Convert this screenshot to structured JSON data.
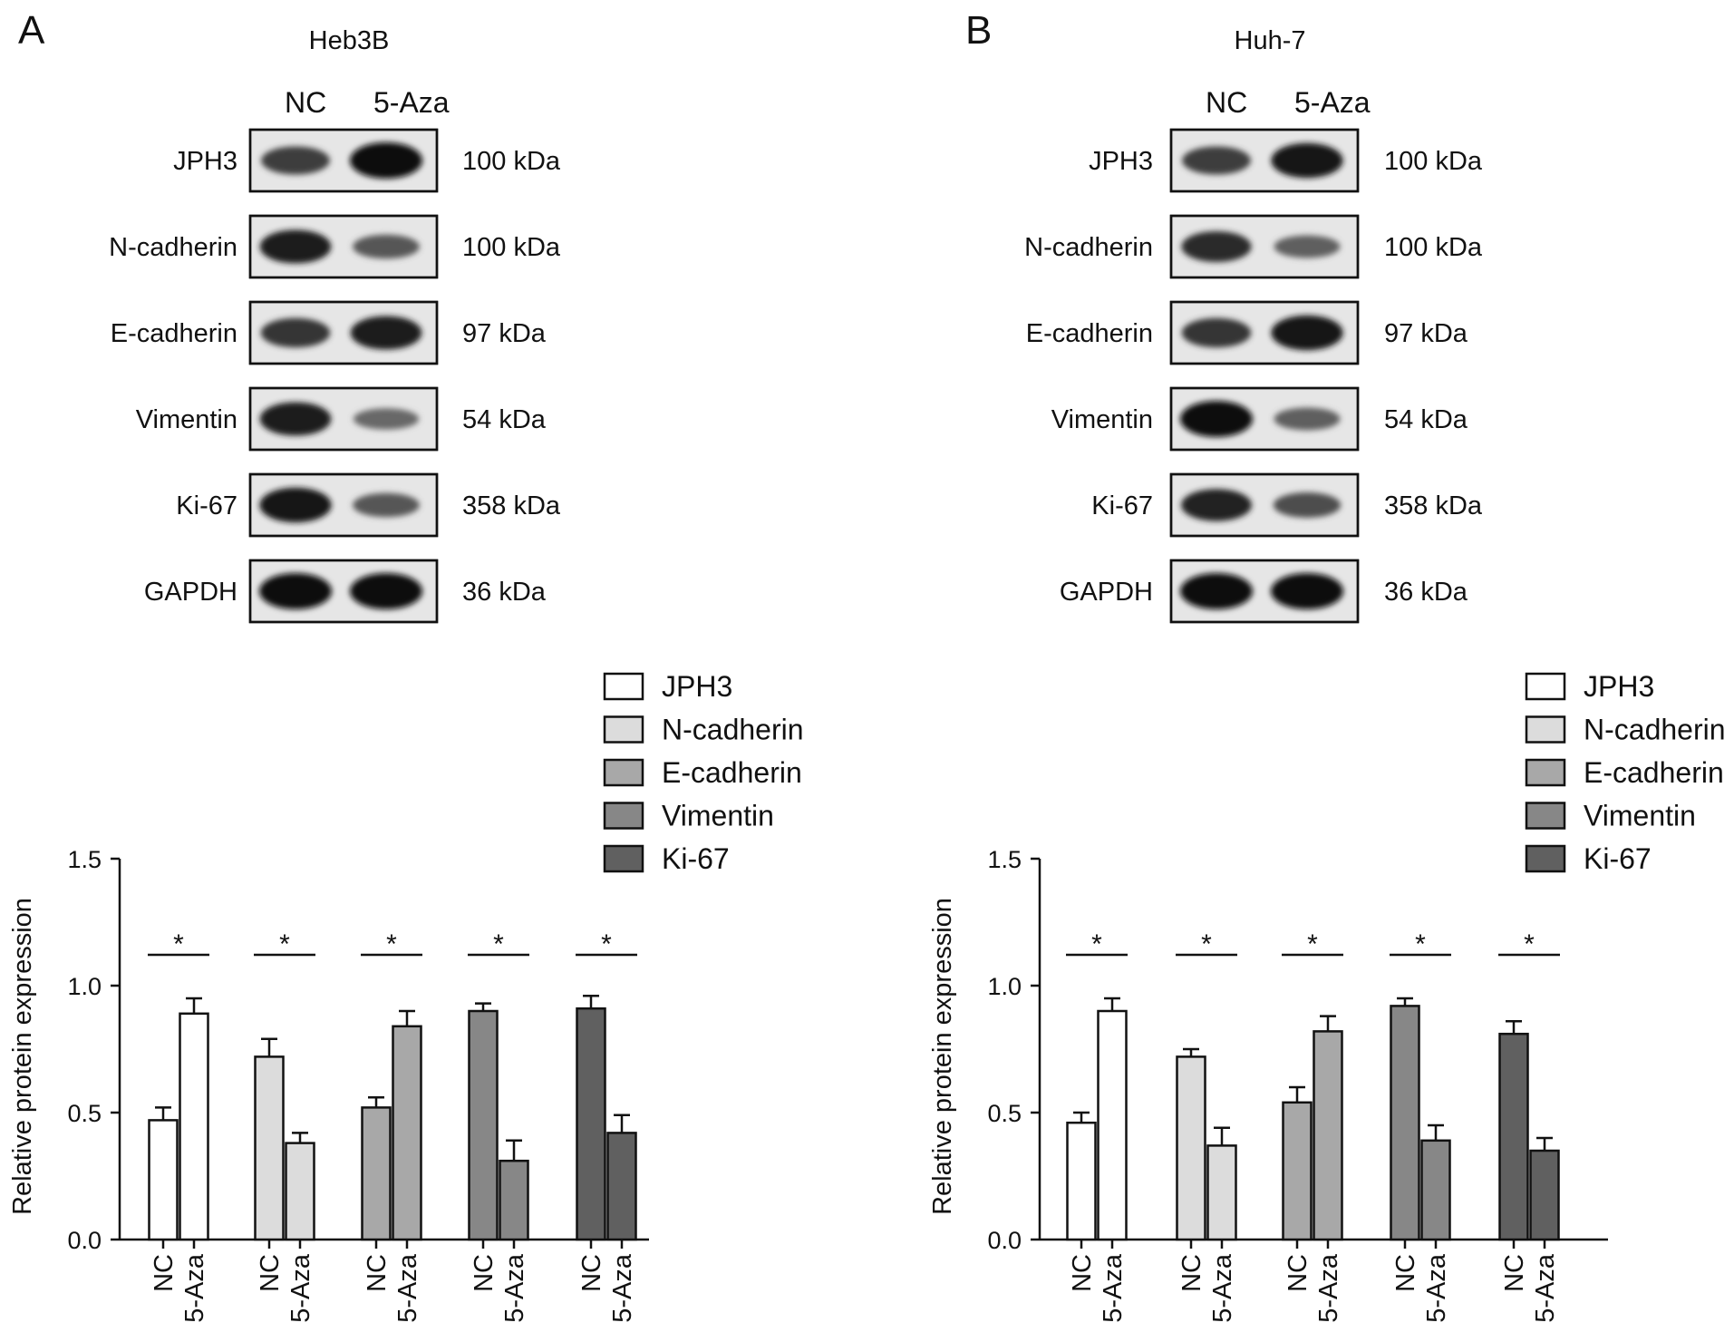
{
  "panels": [
    {
      "letter": "A",
      "cell_line": "Heb3B",
      "lanes": [
        "NC",
        "5-Aza"
      ],
      "blots": [
        {
          "protein": "JPH3",
          "kda": "100 kDa",
          "intensity": [
            0.7,
            1.0
          ]
        },
        {
          "protein": "N-cadherin",
          "kda": "100 kDa",
          "intensity": [
            0.9,
            0.55
          ]
        },
        {
          "protein": "E-cadherin",
          "kda": "97 kDa",
          "intensity": [
            0.75,
            0.9
          ]
        },
        {
          "protein": "Vimentin",
          "kda": "54 kDa",
          "intensity": [
            0.9,
            0.45
          ]
        },
        {
          "protein": "Ki-67",
          "kda": "358 kDa",
          "intensity": [
            0.95,
            0.55
          ]
        },
        {
          "protein": "GAPDH",
          "kda": "36 kDa",
          "intensity": [
            1.0,
            1.0
          ]
        }
      ]
    },
    {
      "letter": "B",
      "cell_line": "Huh-7",
      "lanes": [
        "NC",
        "5-Aza"
      ],
      "blots": [
        {
          "protein": "JPH3",
          "kda": "100 kDa",
          "intensity": [
            0.7,
            0.95
          ]
        },
        {
          "protein": "N-cadherin",
          "kda": "100 kDa",
          "intensity": [
            0.8,
            0.5
          ]
        },
        {
          "protein": "E-cadherin",
          "kda": "97 kDa",
          "intensity": [
            0.75,
            0.95
          ]
        },
        {
          "protein": "Vimentin",
          "kda": "54 kDa",
          "intensity": [
            1.0,
            0.5
          ]
        },
        {
          "protein": "Ki-67",
          "kda": "358 kDa",
          "intensity": [
            0.85,
            0.6
          ]
        },
        {
          "protein": "GAPDH",
          "kda": "36 kDa",
          "intensity": [
            1.0,
            1.0
          ]
        }
      ]
    }
  ],
  "colors": {
    "JPH3": "#ffffff",
    "N-cadherin": "#dcdcdc",
    "E-cadherin": "#a8a8a8",
    "Vimentin": "#878787",
    "Ki-67": "#606060"
  },
  "chart_data": [
    {
      "type": "bar",
      "panel": "A",
      "ylabel": "Relative protein expression",
      "ylim": [
        0,
        1.5
      ],
      "yticks": [
        "0.0",
        "0.5",
        "1.0",
        "1.5"
      ],
      "groups": [
        "NC",
        "5-Aza"
      ],
      "legend": [
        "JPH3",
        "N-cadherin",
        "E-cadherin",
        "Vimentin",
        "Ki-67"
      ],
      "series": [
        {
          "name": "JPH3",
          "values": [
            0.47,
            0.89
          ],
          "errors": [
            0.05,
            0.06
          ]
        },
        {
          "name": "N-cadherin",
          "values": [
            0.72,
            0.38
          ],
          "errors": [
            0.07,
            0.04
          ]
        },
        {
          "name": "E-cadherin",
          "values": [
            0.52,
            0.84
          ],
          "errors": [
            0.04,
            0.06
          ]
        },
        {
          "name": "Vimentin",
          "values": [
            0.9,
            0.31
          ],
          "errors": [
            0.03,
            0.08
          ]
        },
        {
          "name": "Ki-67",
          "values": [
            0.91,
            0.42
          ],
          "errors": [
            0.05,
            0.07
          ]
        }
      ],
      "significance": [
        "*",
        "*",
        "*",
        "*",
        "*"
      ]
    },
    {
      "type": "bar",
      "panel": "B",
      "ylabel": "Relative protein expression",
      "ylim": [
        0,
        1.5
      ],
      "yticks": [
        "0.0",
        "0.5",
        "1.0",
        "1.5"
      ],
      "groups": [
        "NC",
        "5-Aza"
      ],
      "legend": [
        "JPH3",
        "N-cadherin",
        "E-cadherin",
        "Vimentin",
        "Ki-67"
      ],
      "series": [
        {
          "name": "JPH3",
          "values": [
            0.46,
            0.9
          ],
          "errors": [
            0.04,
            0.05
          ]
        },
        {
          "name": "N-cadherin",
          "values": [
            0.72,
            0.37
          ],
          "errors": [
            0.03,
            0.07
          ]
        },
        {
          "name": "E-cadherin",
          "values": [
            0.54,
            0.82
          ],
          "errors": [
            0.06,
            0.06
          ]
        },
        {
          "name": "Vimentin",
          "values": [
            0.92,
            0.39
          ],
          "errors": [
            0.03,
            0.06
          ]
        },
        {
          "name": "Ki-67",
          "values": [
            0.81,
            0.35
          ],
          "errors": [
            0.05,
            0.05
          ]
        }
      ],
      "significance": [
        "*",
        "*",
        "*",
        "*",
        "*"
      ]
    }
  ]
}
